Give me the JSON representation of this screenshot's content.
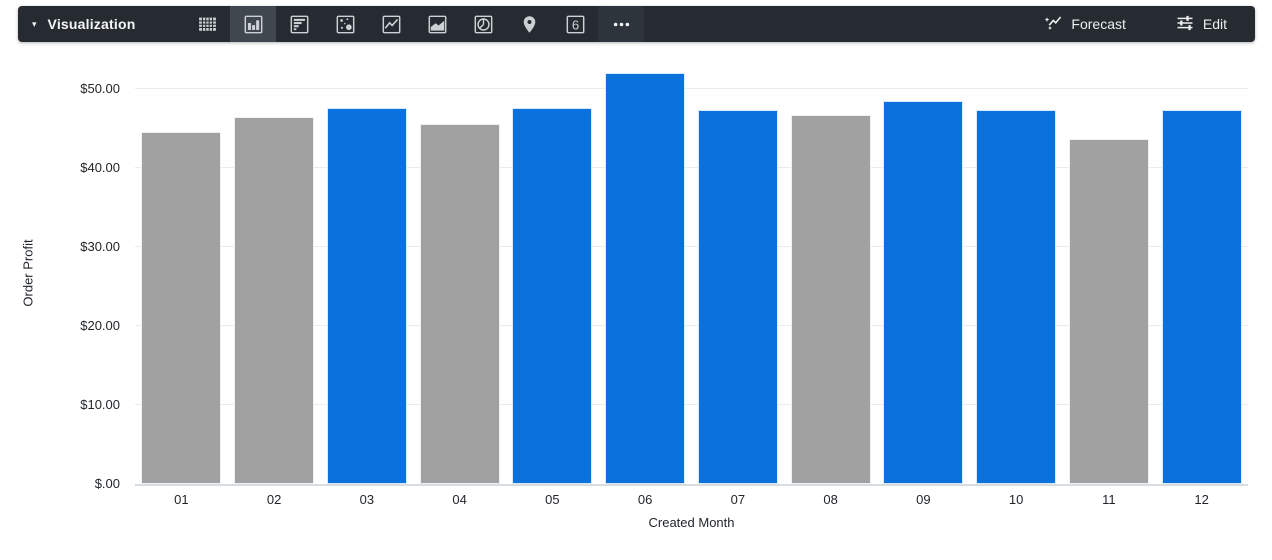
{
  "toolbar": {
    "title": "Visualization",
    "caret_icon": "▾",
    "chart_types": [
      {
        "name": "table",
        "selected": false
      },
      {
        "name": "column",
        "selected": true
      },
      {
        "name": "bar",
        "selected": false
      },
      {
        "name": "scatter",
        "selected": false
      },
      {
        "name": "line",
        "selected": false
      },
      {
        "name": "area",
        "selected": false
      },
      {
        "name": "pie",
        "selected": false
      },
      {
        "name": "map",
        "selected": false
      },
      {
        "name": "single-value",
        "selected": false,
        "glyph": "6"
      },
      {
        "name": "more",
        "selected": false
      }
    ],
    "forecast_label": "Forecast",
    "edit_label": "Edit"
  },
  "chart_data": {
    "type": "bar",
    "title": "",
    "xlabel": "Created Month",
    "ylabel": "Order Profit",
    "categories": [
      "01",
      "02",
      "03",
      "04",
      "05",
      "06",
      "07",
      "08",
      "09",
      "10",
      "11",
      "12"
    ],
    "values": [
      44.6,
      46.5,
      47.6,
      45.5,
      47.6,
      52.0,
      47.3,
      46.7,
      48.5,
      47.3,
      43.6,
      47.3
    ],
    "bar_colors": [
      "gray",
      "gray",
      "blue",
      "gray",
      "blue",
      "blue",
      "blue",
      "gray",
      "blue",
      "blue",
      "gray",
      "blue"
    ],
    "colors": {
      "blue": "#0b72dd",
      "gray": "#a1a1a1"
    },
    "y_ticks": [
      {
        "value": 50,
        "label": "$50.00"
      },
      {
        "value": 40,
        "label": "$40.00"
      },
      {
        "value": 30,
        "label": "$30.00"
      },
      {
        "value": 20,
        "label": "$20.00"
      },
      {
        "value": 10,
        "label": "$10.00"
      },
      {
        "value": 0,
        "label": "$.00"
      }
    ],
    "ylim": [
      0,
      53.4
    ],
    "grid": true,
    "legend": "none"
  }
}
